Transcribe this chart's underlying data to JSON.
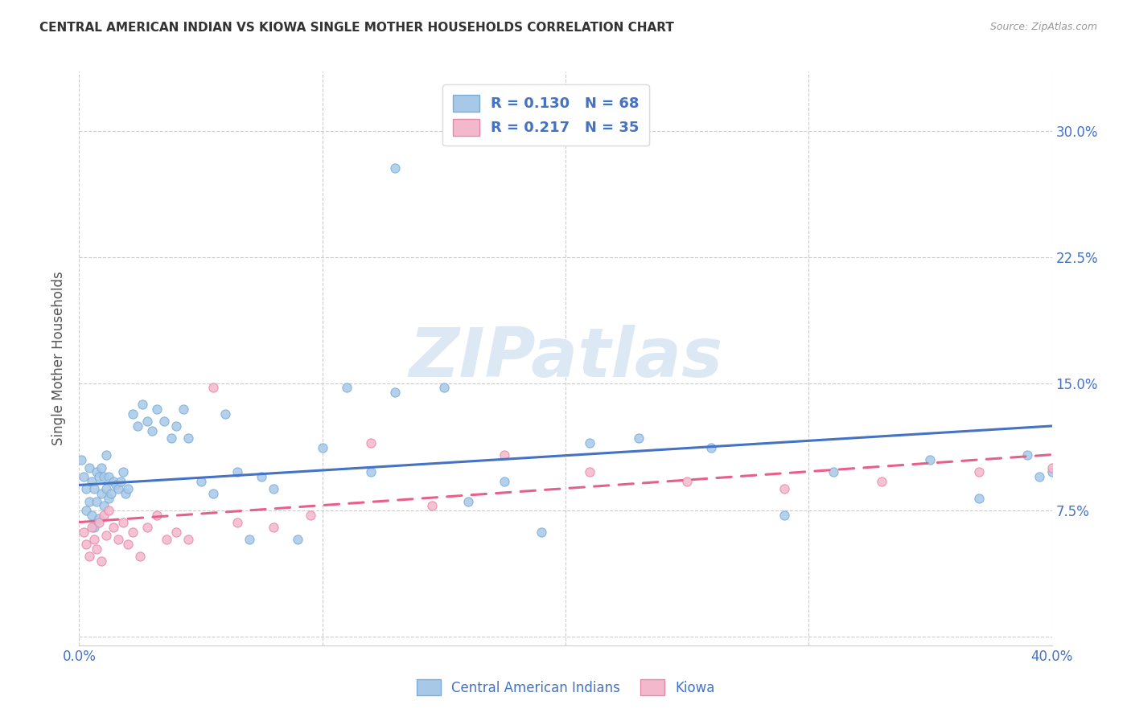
{
  "title": "CENTRAL AMERICAN INDIAN VS KIOWA SINGLE MOTHER HOUSEHOLDS CORRELATION CHART",
  "source": "Source: ZipAtlas.com",
  "ylabel": "Single Mother Households",
  "xlim": [
    0.0,
    0.4
  ],
  "ylim": [
    -0.005,
    0.335
  ],
  "yticks": [
    0.0,
    0.075,
    0.15,
    0.225,
    0.3
  ],
  "ytick_labels": [
    "",
    "7.5%",
    "15.0%",
    "22.5%",
    "30.0%"
  ],
  "xticks": [
    0.0,
    0.1,
    0.2,
    0.3,
    0.4
  ],
  "xtick_labels": [
    "0.0%",
    "",
    "",
    "",
    "40.0%"
  ],
  "color_blue": "#a8c8e8",
  "color_pink": "#f4b8cc",
  "edge_blue": "#7aaed6",
  "edge_pink": "#e888a8",
  "line_blue": "#4472c4",
  "line_pink": "#e8608a",
  "watermark_color": "#dce8f4",
  "blue_x": [
    0.001,
    0.002,
    0.003,
    0.003,
    0.004,
    0.004,
    0.005,
    0.005,
    0.006,
    0.006,
    0.007,
    0.007,
    0.008,
    0.008,
    0.009,
    0.009,
    0.01,
    0.01,
    0.011,
    0.011,
    0.012,
    0.012,
    0.013,
    0.014,
    0.015,
    0.016,
    0.017,
    0.018,
    0.019,
    0.02,
    0.022,
    0.024,
    0.026,
    0.028,
    0.03,
    0.032,
    0.035,
    0.038,
    0.04,
    0.043,
    0.045,
    0.05,
    0.055,
    0.06,
    0.065,
    0.07,
    0.075,
    0.08,
    0.09,
    0.1,
    0.11,
    0.12,
    0.13,
    0.15,
    0.16,
    0.175,
    0.19,
    0.21,
    0.23,
    0.26,
    0.29,
    0.31,
    0.35,
    0.37,
    0.39,
    0.395,
    0.4,
    0.13
  ],
  "blue_y": [
    0.105,
    0.095,
    0.088,
    0.075,
    0.1,
    0.08,
    0.092,
    0.072,
    0.088,
    0.065,
    0.098,
    0.08,
    0.095,
    0.07,
    0.1,
    0.085,
    0.095,
    0.078,
    0.108,
    0.088,
    0.095,
    0.082,
    0.085,
    0.092,
    0.09,
    0.088,
    0.092,
    0.098,
    0.085,
    0.088,
    0.132,
    0.125,
    0.138,
    0.128,
    0.122,
    0.135,
    0.128,
    0.118,
    0.125,
    0.135,
    0.118,
    0.092,
    0.085,
    0.132,
    0.098,
    0.058,
    0.095,
    0.088,
    0.058,
    0.112,
    0.148,
    0.098,
    0.145,
    0.148,
    0.08,
    0.092,
    0.062,
    0.115,
    0.118,
    0.112,
    0.072,
    0.098,
    0.105,
    0.082,
    0.108,
    0.095,
    0.098,
    0.278
  ],
  "pink_x": [
    0.002,
    0.003,
    0.004,
    0.005,
    0.006,
    0.007,
    0.008,
    0.009,
    0.01,
    0.011,
    0.012,
    0.014,
    0.016,
    0.018,
    0.02,
    0.022,
    0.025,
    0.028,
    0.032,
    0.036,
    0.04,
    0.045,
    0.055,
    0.065,
    0.08,
    0.095,
    0.12,
    0.145,
    0.175,
    0.21,
    0.25,
    0.29,
    0.33,
    0.37,
    0.4
  ],
  "pink_y": [
    0.062,
    0.055,
    0.048,
    0.065,
    0.058,
    0.052,
    0.068,
    0.045,
    0.072,
    0.06,
    0.075,
    0.065,
    0.058,
    0.068,
    0.055,
    0.062,
    0.048,
    0.065,
    0.072,
    0.058,
    0.062,
    0.058,
    0.148,
    0.068,
    0.065,
    0.072,
    0.115,
    0.078,
    0.108,
    0.098,
    0.092,
    0.088,
    0.092,
    0.098,
    0.1
  ],
  "blue_trend_x": [
    0.0,
    0.4
  ],
  "blue_trend_y": [
    0.09,
    0.125
  ],
  "pink_trend_x": [
    0.0,
    0.4
  ],
  "pink_trend_y": [
    0.068,
    0.108
  ]
}
